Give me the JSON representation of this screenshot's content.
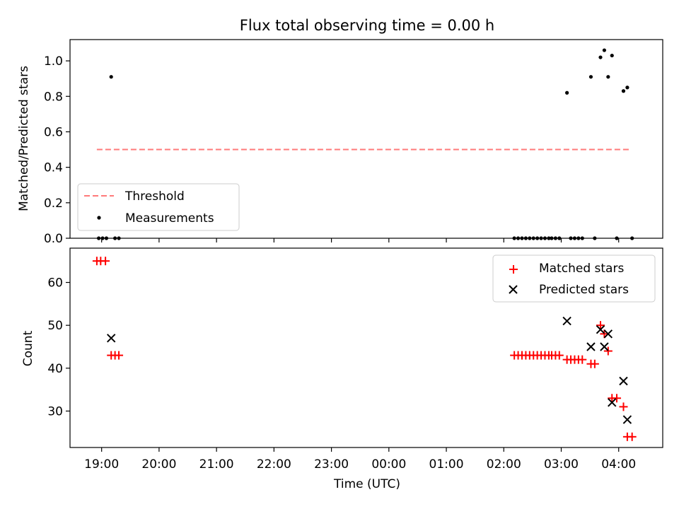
{
  "chart_data": [
    {
      "type": "scatter",
      "title": "Flux total observing time = 0.00 h",
      "xlabel": "",
      "ylabel": "Matched/Predicted stars",
      "xlim": [
        "18:27",
        "04:46"
      ],
      "ylim": [
        0,
        1.12
      ],
      "yticks": [
        0.0,
        0.2,
        0.4,
        0.6,
        0.8,
        1.0
      ],
      "ytick_labels": [
        "0.0",
        "0.2",
        "0.4",
        "0.6",
        "0.8",
        "1.0"
      ],
      "legend": {
        "placement": "lower-left",
        "entries": [
          "Threshold",
          "Measurements"
        ]
      },
      "threshold": {
        "name": "Threshold",
        "y": 0.5,
        "x_range": [
          "18:55",
          "04:13"
        ],
        "color": "#ff7a7a",
        "style": "dashed"
      },
      "series": [
        {
          "name": "Measurements",
          "marker": "dot",
          "color": "#000000",
          "points": [
            [
              "18:57",
              0.0
            ],
            [
              "19:01",
              0.0
            ],
            [
              "19:05",
              0.0
            ],
            [
              "19:10",
              0.91
            ],
            [
              "19:14",
              0.0
            ],
            [
              "19:18",
              0.0
            ],
            [
              "02:11",
              0.0
            ],
            [
              "02:15",
              0.0
            ],
            [
              "02:19",
              0.0
            ],
            [
              "02:23",
              0.0
            ],
            [
              "02:27",
              0.0
            ],
            [
              "02:31",
              0.0
            ],
            [
              "02:35",
              0.0
            ],
            [
              "02:39",
              0.0
            ],
            [
              "02:43",
              0.0
            ],
            [
              "02:47",
              0.0
            ],
            [
              "02:50",
              0.0
            ],
            [
              "02:54",
              0.0
            ],
            [
              "02:58",
              0.0
            ],
            [
              "03:06",
              0.82
            ],
            [
              "03:10",
              0.0
            ],
            [
              "03:14",
              0.0
            ],
            [
              "03:18",
              0.0
            ],
            [
              "03:22",
              0.0
            ],
            [
              "03:31",
              0.91
            ],
            [
              "03:35",
              0.0
            ],
            [
              "03:41",
              1.02
            ],
            [
              "03:45",
              1.06
            ],
            [
              "03:49",
              0.91
            ],
            [
              "03:53",
              1.03
            ],
            [
              "03:58",
              0.0
            ],
            [
              "04:05",
              0.83
            ],
            [
              "04:09",
              0.85
            ],
            [
              "04:14",
              0.0
            ]
          ]
        }
      ]
    },
    {
      "type": "scatter",
      "title": "",
      "xlabel": "Time (UTC)",
      "ylabel": "Count",
      "xlim": [
        "18:27",
        "04:46"
      ],
      "ylim": [
        21.5,
        68
      ],
      "yticks": [
        30,
        40,
        50,
        60
      ],
      "ytick_labels": [
        "30",
        "40",
        "50",
        "60"
      ],
      "xticks": [
        "19:00",
        "20:00",
        "21:00",
        "22:00",
        "23:00",
        "00:00",
        "01:00",
        "02:00",
        "03:00",
        "04:00"
      ],
      "legend": {
        "placement": "upper-right",
        "entries": [
          "Matched stars",
          "Predicted stars"
        ]
      },
      "series": [
        {
          "name": "Matched stars",
          "marker": "plus",
          "color": "#ff0000",
          "points": [
            [
              "18:55",
              65
            ],
            [
              "18:59",
              65
            ],
            [
              "19:04",
              65
            ],
            [
              "19:10",
              43
            ],
            [
              "19:14",
              43
            ],
            [
              "19:18",
              43
            ],
            [
              "02:11",
              43
            ],
            [
              "02:15",
              43
            ],
            [
              "02:19",
              43
            ],
            [
              "02:23",
              43
            ],
            [
              "02:27",
              43
            ],
            [
              "02:31",
              43
            ],
            [
              "02:35",
              43
            ],
            [
              "02:39",
              43
            ],
            [
              "02:43",
              43
            ],
            [
              "02:47",
              43
            ],
            [
              "02:50",
              43
            ],
            [
              "02:54",
              43
            ],
            [
              "02:58",
              43
            ],
            [
              "03:06",
              42
            ],
            [
              "03:10",
              42
            ],
            [
              "03:14",
              42
            ],
            [
              "03:18",
              42
            ],
            [
              "03:22",
              42
            ],
            [
              "03:31",
              41
            ],
            [
              "03:35",
              41
            ],
            [
              "03:41",
              50
            ],
            [
              "03:45",
              48
            ],
            [
              "03:49",
              44
            ],
            [
              "03:53",
              33
            ],
            [
              "03:58",
              33
            ],
            [
              "04:05",
              31
            ],
            [
              "04:09",
              24
            ],
            [
              "04:14",
              24
            ]
          ]
        },
        {
          "name": "Predicted stars",
          "marker": "x",
          "color": "#000000",
          "points": [
            [
              "19:10",
              47
            ],
            [
              "03:06",
              51
            ],
            [
              "03:31",
              45
            ],
            [
              "03:41",
              49
            ],
            [
              "03:45",
              45
            ],
            [
              "03:49",
              48
            ],
            [
              "03:53",
              32
            ],
            [
              "04:05",
              37
            ],
            [
              "04:09",
              28
            ]
          ]
        }
      ]
    }
  ]
}
